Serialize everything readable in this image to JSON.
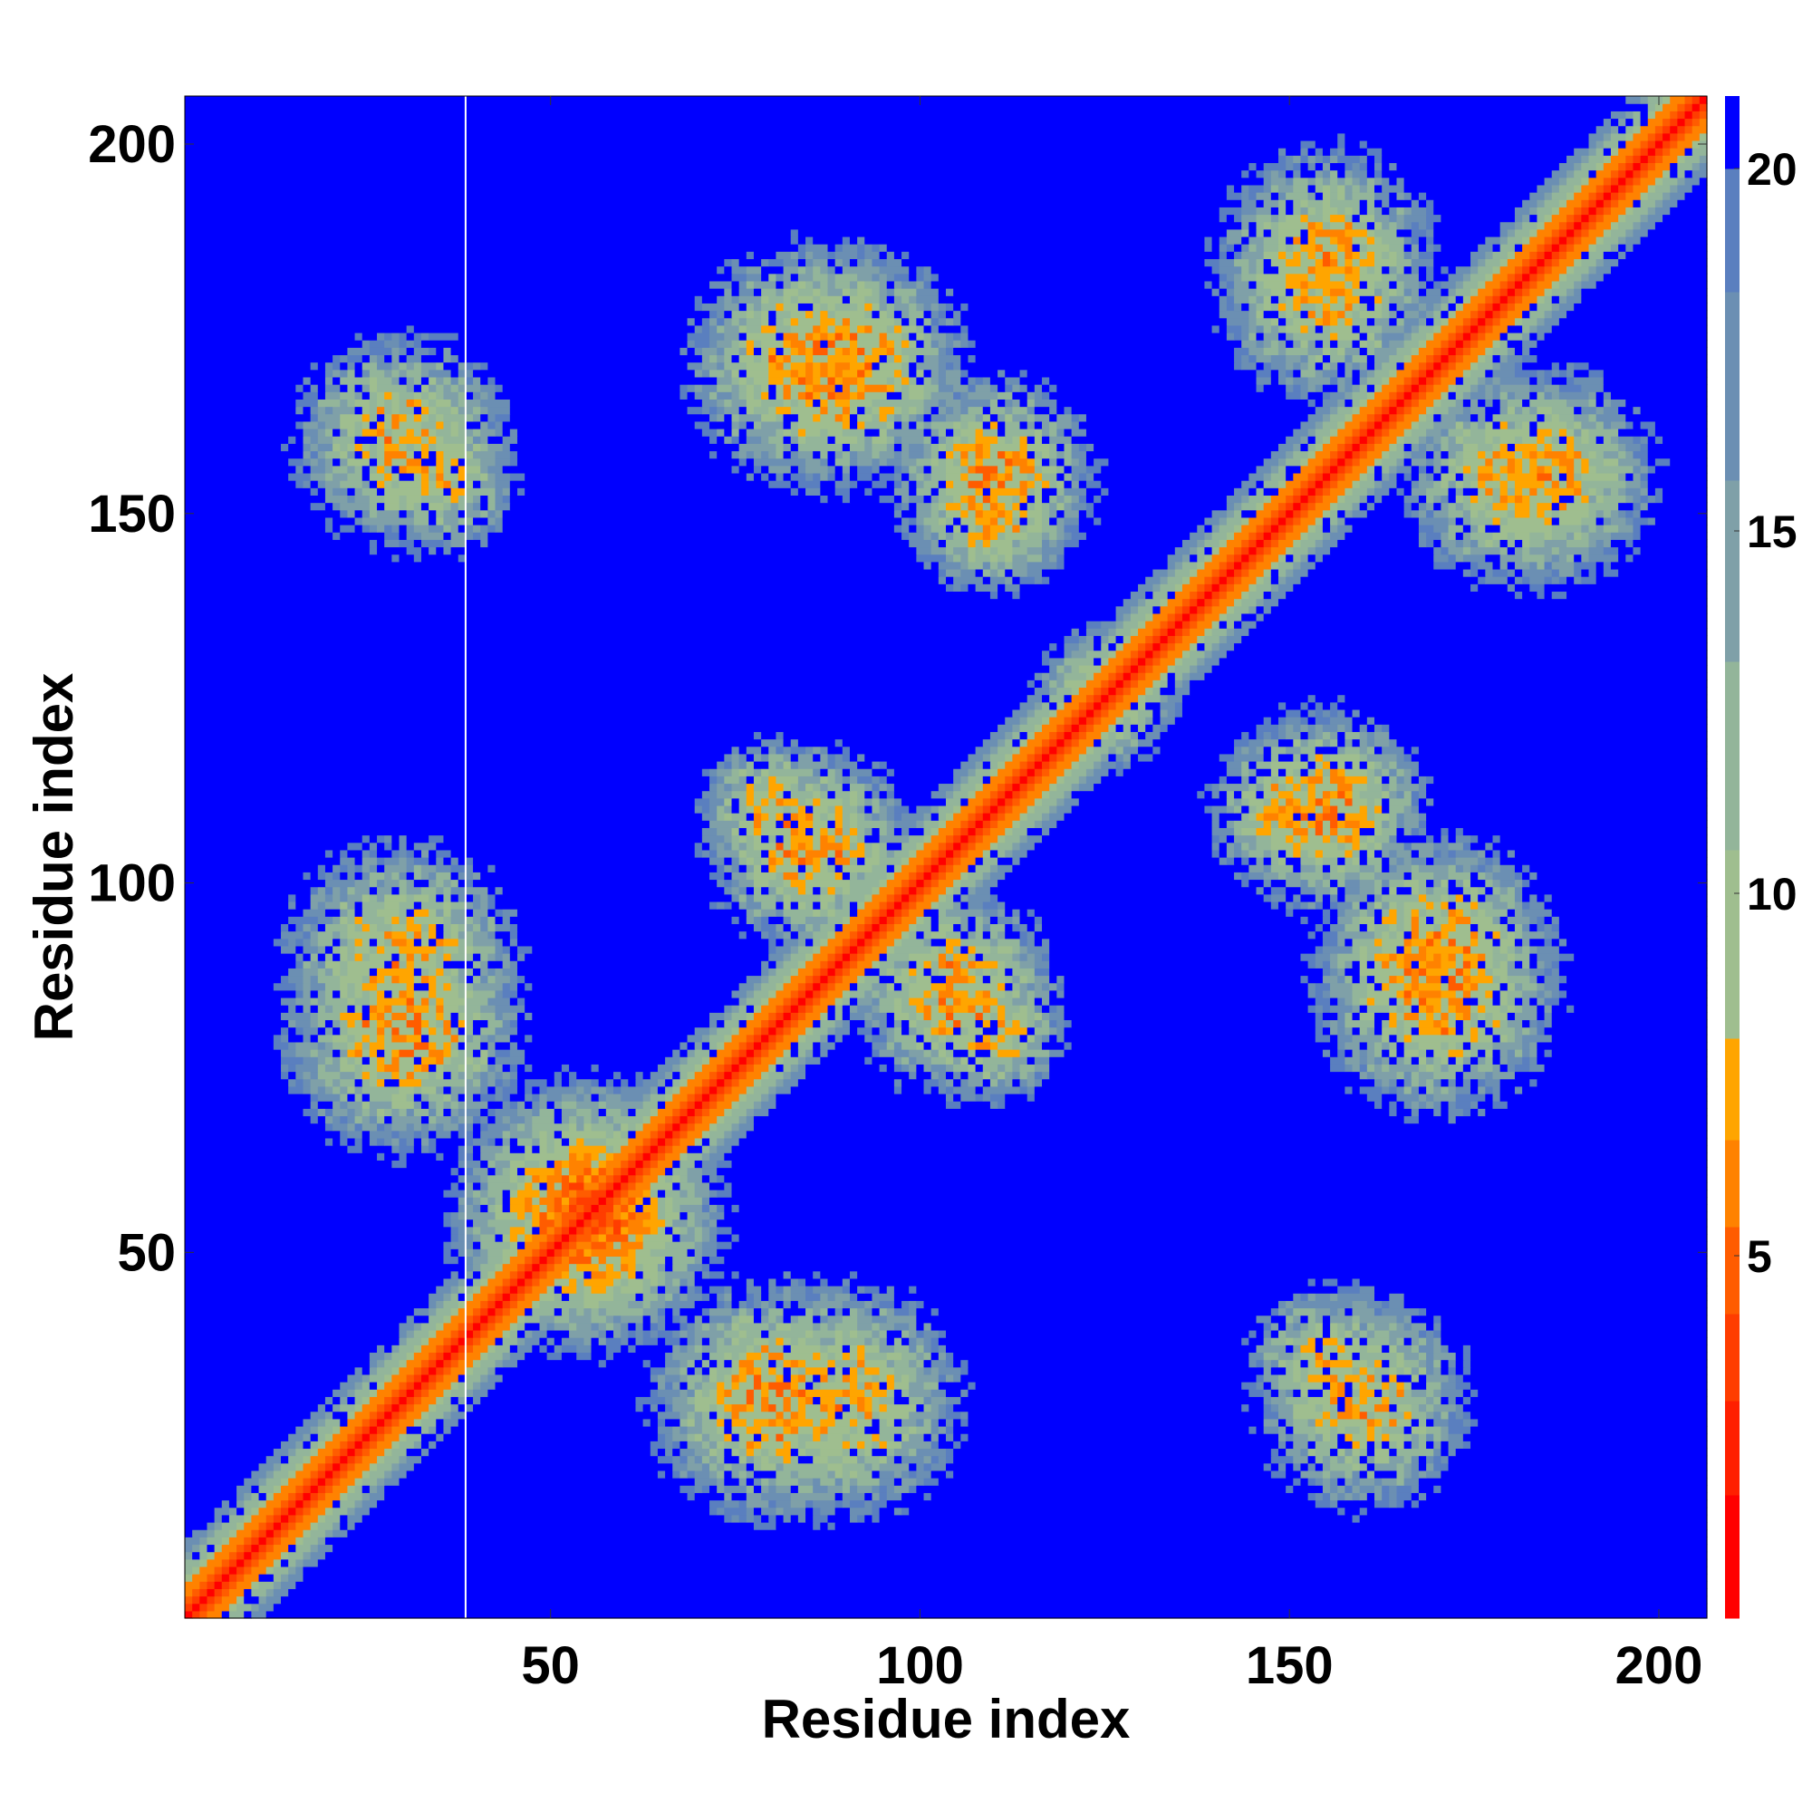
{
  "chart_data": {
    "type": "heatmap",
    "title": "",
    "xlabel": "Residue index",
    "ylabel": "Residue index",
    "n_residues": 206,
    "xlim": [
      1,
      206
    ],
    "ylim": [
      1,
      206
    ],
    "x_ticks": [
      50,
      100,
      150,
      200
    ],
    "y_ticks": [
      50,
      100,
      150,
      200
    ],
    "colorbar": {
      "range": [
        0,
        21
      ],
      "ticks": [
        5,
        10,
        15,
        20
      ],
      "levels": [
        {
          "max": 1.7,
          "color": "#ff0000"
        },
        {
          "max": 3.0,
          "color": "#ff1f00"
        },
        {
          "max": 4.2,
          "color": "#ff3d00"
        },
        {
          "max": 5.4,
          "color": "#ff5c00"
        },
        {
          "max": 6.6,
          "color": "#ff8200"
        },
        {
          "max": 8.0,
          "color": "#ffa500"
        },
        {
          "max": 10.6,
          "color": "#9fbe8f"
        },
        {
          "max": 13.2,
          "color": "#93b59a"
        },
        {
          "max": 15.7,
          "color": "#7fa0a8"
        },
        {
          "max": 18.3,
          "color": "#6b8fb3"
        },
        {
          "max": 20.0,
          "color": "#5a7fbf"
        },
        {
          "max": 21.0,
          "color": "#0000ff"
        }
      ]
    },
    "values_description_free": true,
    "contact_regions": [
      {
        "x_center": 90,
        "y_center": 170,
        "spread": 13,
        "min_distance": 6
      },
      {
        "x_center": 110,
        "y_center": 150,
        "spread": 9,
        "min_distance": 7
      },
      {
        "x_center": 35,
        "y_center": 155,
        "spread": 9,
        "min_distance": 8
      },
      {
        "x_center": 30,
        "y_center": 90,
        "spread": 13,
        "min_distance": 7
      },
      {
        "x_center": 55,
        "y_center": 55,
        "spread": 14,
        "min_distance": 5
      },
      {
        "x_center": 80,
        "y_center": 30,
        "spread": 13,
        "min_distance": 6
      },
      {
        "x_center": 85,
        "y_center": 105,
        "spread": 11,
        "min_distance": 6
      },
      {
        "x_center": 110,
        "y_center": 80,
        "spread": 8,
        "min_distance": 7
      },
      {
        "x_center": 155,
        "y_center": 185,
        "spread": 12,
        "min_distance": 7
      },
      {
        "x_center": 180,
        "y_center": 155,
        "spread": 12,
        "min_distance": 7
      },
      {
        "x_center": 170,
        "y_center": 85,
        "spread": 13,
        "min_distance": 6
      },
      {
        "x_center": 155,
        "y_center": 110,
        "spread": 11,
        "min_distance": 6
      },
      {
        "x_center": 160,
        "y_center": 30,
        "spread": 12,
        "min_distance": 7
      },
      {
        "x_center": 125,
        "y_center": 125,
        "spread": 8,
        "min_distance": 8
      }
    ]
  }
}
